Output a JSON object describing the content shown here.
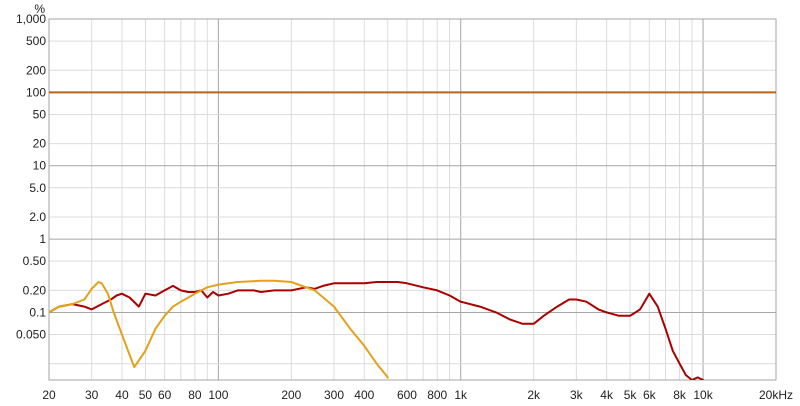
{
  "chart_data": {
    "type": "line",
    "title": "",
    "xlabel": "",
    "ylabel": "",
    "y_unit": "%",
    "x_unit": "kHz",
    "x_scale": "log",
    "y_scale": "log",
    "xlim": [
      20,
      20000
    ],
    "ylim": [
      0.012,
      1000
    ],
    "grid": true,
    "legend": "none",
    "x_ticks": [
      {
        "v": 20,
        "t": "20"
      },
      {
        "v": 30,
        "t": "30"
      },
      {
        "v": 40,
        "t": "40"
      },
      {
        "v": 50,
        "t": "50"
      },
      {
        "v": 60,
        "t": "60"
      },
      {
        "v": 80,
        "t": "80"
      },
      {
        "v": 100,
        "t": "100"
      },
      {
        "v": 200,
        "t": "200"
      },
      {
        "v": 300,
        "t": "300"
      },
      {
        "v": 400,
        "t": "400"
      },
      {
        "v": 600,
        "t": "600"
      },
      {
        "v": 800,
        "t": "800"
      },
      {
        "v": 1000,
        "t": "1k"
      },
      {
        "v": 2000,
        "t": "2k"
      },
      {
        "v": 3000,
        "t": "3k"
      },
      {
        "v": 4000,
        "t": "4k"
      },
      {
        "v": 5000,
        "t": "5k"
      },
      {
        "v": 6000,
        "t": "6k"
      },
      {
        "v": 8000,
        "t": "8k"
      },
      {
        "v": 10000,
        "t": "10k"
      },
      {
        "v": 20000,
        "t": "20kHz"
      }
    ],
    "y_ticks": [
      {
        "v": 1000,
        "t": "1,000"
      },
      {
        "v": 500,
        "t": "500"
      },
      {
        "v": 200,
        "t": "200"
      },
      {
        "v": 100,
        "t": "100"
      },
      {
        "v": 50,
        "t": "50"
      },
      {
        "v": 20,
        "t": "20"
      },
      {
        "v": 10,
        "t": "10"
      },
      {
        "v": 5,
        "t": "5.0"
      },
      {
        "v": 2,
        "t": "2.0"
      },
      {
        "v": 1,
        "t": "1"
      },
      {
        "v": 0.5,
        "t": "0.50"
      },
      {
        "v": 0.2,
        "t": "0.20"
      },
      {
        "v": 0.1,
        "t": "0.1"
      },
      {
        "v": 0.05,
        "t": "0.050"
      }
    ],
    "series": [
      {
        "color": "#b5651d",
        "x": [
          20,
          20000
        ],
        "y": [
          100,
          100
        ]
      },
      {
        "color": "#aa0000",
        "x": [
          20,
          22,
          25,
          28,
          30,
          33,
          36,
          38,
          40,
          43,
          47,
          50,
          55,
          60,
          65,
          70,
          75,
          80,
          85,
          90,
          95,
          100,
          110,
          120,
          130,
          140,
          150,
          170,
          200,
          230,
          250,
          270,
          300,
          350,
          400,
          450,
          500,
          550,
          600,
          700,
          800,
          900,
          1000,
          1200,
          1400,
          1600,
          1800,
          2000,
          2200,
          2500,
          2800,
          3000,
          3300,
          3700,
          4000,
          4500,
          5000,
          5500,
          6000,
          6500,
          7000,
          7500,
          8000,
          8500,
          9000,
          9500,
          10000
        ],
        "y": [
          0.1,
          0.12,
          0.13,
          0.12,
          0.11,
          0.13,
          0.15,
          0.17,
          0.18,
          0.16,
          0.12,
          0.18,
          0.17,
          0.2,
          0.23,
          0.2,
          0.19,
          0.19,
          0.2,
          0.16,
          0.19,
          0.17,
          0.18,
          0.2,
          0.2,
          0.2,
          0.19,
          0.2,
          0.2,
          0.22,
          0.21,
          0.23,
          0.25,
          0.25,
          0.25,
          0.26,
          0.26,
          0.26,
          0.25,
          0.22,
          0.2,
          0.17,
          0.14,
          0.12,
          0.1,
          0.08,
          0.07,
          0.07,
          0.09,
          0.12,
          0.15,
          0.15,
          0.14,
          0.11,
          0.1,
          0.09,
          0.09,
          0.11,
          0.18,
          0.12,
          0.06,
          0.03,
          0.02,
          0.014,
          0.012,
          0.013,
          0.012
        ]
      },
      {
        "color": "#e3a21a",
        "x": [
          20,
          22,
          25,
          28,
          30,
          32,
          33,
          35,
          37,
          40,
          45,
          50,
          55,
          60,
          65,
          70,
          80,
          90,
          100,
          120,
          150,
          170,
          200,
          250,
          300,
          350,
          400,
          450,
          500
        ],
        "y": [
          0.1,
          0.12,
          0.13,
          0.15,
          0.21,
          0.26,
          0.25,
          0.18,
          0.1,
          0.05,
          0.018,
          0.03,
          0.06,
          0.09,
          0.12,
          0.14,
          0.18,
          0.22,
          0.24,
          0.26,
          0.27,
          0.27,
          0.26,
          0.2,
          0.12,
          0.06,
          0.035,
          0.02,
          0.013
        ]
      }
    ]
  }
}
